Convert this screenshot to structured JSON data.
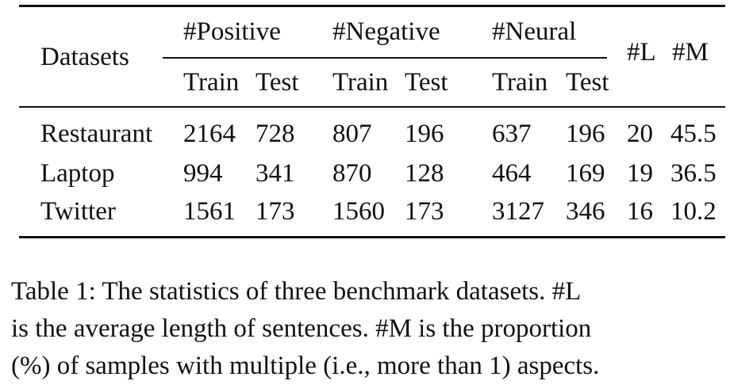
{
  "table": {
    "header": {
      "datasets": "Datasets",
      "positive": "#Positive",
      "negative": "#Negative",
      "neural": "#Neural",
      "l": "#L",
      "m": "#M",
      "train": "Train",
      "test": "Test"
    },
    "rows": [
      {
        "name": "Restaurant",
        "pos_train": "2164",
        "pos_test": "728",
        "neg_train": "807",
        "neg_test": "196",
        "neu_train": "637",
        "neu_test": "196",
        "l": "20",
        "m": "45.5"
      },
      {
        "name": "Laptop",
        "pos_train": "994",
        "pos_test": "341",
        "neg_train": "870",
        "neg_test": "128",
        "neu_train": "464",
        "neu_test": "169",
        "l": "19",
        "m": "36.5"
      },
      {
        "name": "Twitter",
        "pos_train": "1561",
        "pos_test": "173",
        "neg_train": "1560",
        "neg_test": "173",
        "neu_train": "3127",
        "neu_test": "346",
        "l": "16",
        "m": "10.2"
      }
    ]
  },
  "caption": {
    "line1": "Table 1: The statistics of three benchmark datasets. #L",
    "line2": "is the average length of sentences. #M is the proportion",
    "line3": "(%) of samples with multiple (i.e., more than 1) aspects."
  }
}
